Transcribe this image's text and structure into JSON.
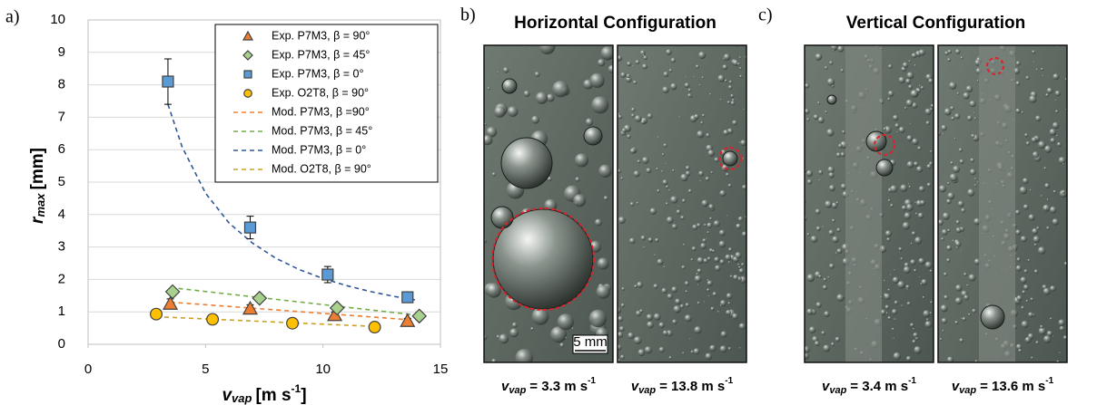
{
  "chart_data": {
    "type": "scatter",
    "panel_label": "a)",
    "xlabel": {
      "symbol": "v",
      "subscript": "vap",
      "unit": "[m s",
      "superscript": "-1",
      "close": "]"
    },
    "ylabel": {
      "symbol": "r",
      "subscript": "max",
      "unit": "[mm]"
    },
    "xlim": [
      0,
      15
    ],
    "xticks": [
      0,
      5,
      10,
      15
    ],
    "ylim": [
      0,
      10
    ],
    "yticks": [
      0,
      1,
      2,
      3,
      4,
      5,
      6,
      7,
      8,
      9,
      10
    ],
    "grid": true,
    "legend": "upper right",
    "series": [
      {
        "name": "Exp. P7M3, β = 90°",
        "mode": "markers",
        "marker": "triangle",
        "color": "#ed7d31",
        "x": [
          3.5,
          6.9,
          10.5,
          13.6
        ],
        "values": [
          1.25,
          1.1,
          0.9,
          0.72
        ],
        "errors": [
          0.15,
          0.12,
          0.1,
          0.08
        ]
      },
      {
        "name": "Exp. P7M3, β = 45°",
        "mode": "markers",
        "marker": "diamond",
        "color": "#a9d18e",
        "x": [
          3.6,
          7.3,
          10.6,
          14.1
        ],
        "values": [
          1.62,
          1.42,
          1.12,
          0.87
        ]
      },
      {
        "name": "Exp. P7M3, β = 0°",
        "mode": "markers",
        "marker": "square",
        "color": "#5b9bd5",
        "x": [
          3.4,
          6.9,
          10.2,
          13.6
        ],
        "values": [
          8.1,
          3.6,
          2.15,
          1.45
        ],
        "errors": [
          0.7,
          0.35,
          0.25,
          0.1
        ]
      },
      {
        "name": "Exp. O2T8, β = 90°",
        "mode": "markers",
        "marker": "circle",
        "color": "#ffc000",
        "x": [
          2.9,
          5.3,
          8.7,
          12.2
        ],
        "values": [
          0.93,
          0.77,
          0.65,
          0.53
        ]
      },
      {
        "name": "Mod. P7M3, β =90°",
        "mode": "line",
        "color": "#ed7d31",
        "x": [
          3.5,
          13.8
        ],
        "values": [
          1.3,
          0.75
        ]
      },
      {
        "name": "Mod. P7M3, β = 45°",
        "mode": "line",
        "color": "#70ad47",
        "x": [
          3.5,
          14
        ],
        "values": [
          1.75,
          0.9
        ]
      },
      {
        "name": "Mod. P7M3, β = 0°",
        "mode": "line",
        "color": "#2f5597",
        "x": [
          3.4,
          4,
          5,
          6,
          7,
          8,
          9,
          10,
          11,
          12,
          13,
          14
        ],
        "values": [
          7.4,
          6.09,
          4.66,
          3.74,
          3.12,
          2.65,
          2.3,
          2.03,
          1.81,
          1.63,
          1.48,
          1.36
        ]
      },
      {
        "name": "Mod. O2T8, β = 90°",
        "mode": "line",
        "color": "#c9a227",
        "x": [
          2.9,
          12.2
        ],
        "values": [
          0.85,
          0.55
        ]
      }
    ]
  },
  "photo_panels": [
    {
      "label": "b)",
      "title": "Horizontal Configuration",
      "images": [
        {
          "caption": {
            "symbol": "v",
            "subscript": "vap",
            "text": "= 3.3 m s",
            "superscript": "-1"
          },
          "scale_bar": "5 mm"
        },
        {
          "caption": {
            "symbol": "v",
            "subscript": "vap",
            "text": "= 13.8 m s",
            "superscript": "-1"
          }
        }
      ]
    },
    {
      "label": "c)",
      "title": "Vertical Configuration",
      "images": [
        {
          "caption": {
            "symbol": "v",
            "subscript": "vap",
            "text": "= 3.4 m s",
            "superscript": "-1"
          }
        },
        {
          "caption": {
            "symbol": "v",
            "subscript": "vap",
            "text": "= 13.6 m s",
            "superscript": "-1"
          }
        }
      ]
    }
  ]
}
